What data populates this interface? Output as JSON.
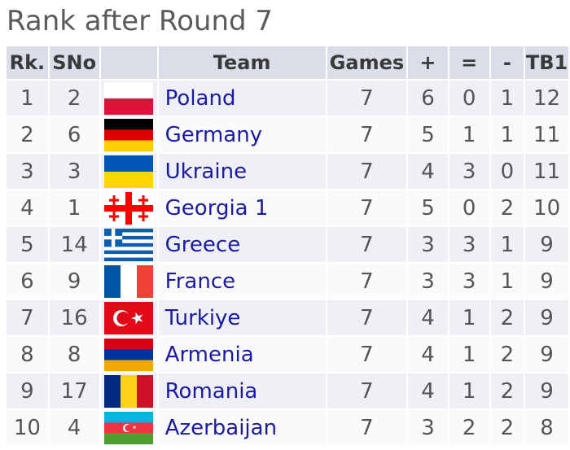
{
  "title": "Rank after Round 7",
  "columns": {
    "rk": "Rk.",
    "sno": "SNo",
    "team": "Team",
    "games": "Games",
    "plus": "+",
    "eq": "=",
    "minus": "-",
    "tb1": "TB1"
  },
  "rows": [
    {
      "rk": "1",
      "sno": "2",
      "flag": "poland-flag-icon",
      "team": "Poland",
      "games": "7",
      "plus": "6",
      "eq": "0",
      "minus": "1",
      "tb1": "12"
    },
    {
      "rk": "2",
      "sno": "6",
      "flag": "germany-flag-icon",
      "team": "Germany",
      "games": "7",
      "plus": "5",
      "eq": "1",
      "minus": "1",
      "tb1": "11"
    },
    {
      "rk": "3",
      "sno": "3",
      "flag": "ukraine-flag-icon",
      "team": "Ukraine",
      "games": "7",
      "plus": "4",
      "eq": "3",
      "minus": "0",
      "tb1": "11"
    },
    {
      "rk": "4",
      "sno": "1",
      "flag": "georgia-flag-icon",
      "team": "Georgia 1",
      "games": "7",
      "plus": "5",
      "eq": "0",
      "minus": "2",
      "tb1": "10"
    },
    {
      "rk": "5",
      "sno": "14",
      "flag": "greece-flag-icon",
      "team": "Greece",
      "games": "7",
      "plus": "3",
      "eq": "3",
      "minus": "1",
      "tb1": "9"
    },
    {
      "rk": "6",
      "sno": "9",
      "flag": "france-flag-icon",
      "team": "France",
      "games": "7",
      "plus": "3",
      "eq": "3",
      "minus": "1",
      "tb1": "9"
    },
    {
      "rk": "7",
      "sno": "16",
      "flag": "turkiye-flag-icon",
      "team": "Turkiye",
      "games": "7",
      "plus": "4",
      "eq": "1",
      "minus": "2",
      "tb1": "9"
    },
    {
      "rk": "8",
      "sno": "8",
      "flag": "armenia-flag-icon",
      "team": "Armenia",
      "games": "7",
      "plus": "4",
      "eq": "1",
      "minus": "2",
      "tb1": "9"
    },
    {
      "rk": "9",
      "sno": "17",
      "flag": "romania-flag-icon",
      "team": "Romania",
      "games": "7",
      "plus": "4",
      "eq": "1",
      "minus": "2",
      "tb1": "9"
    },
    {
      "rk": "10",
      "sno": "4",
      "flag": "azerbaijan-flag-icon",
      "team": "Azerbaijan",
      "games": "7",
      "plus": "3",
      "eq": "2",
      "minus": "2",
      "tb1": "8"
    }
  ],
  "colors": {
    "title": "#5a5a5a",
    "header_bg": "#d9dee8",
    "row_odd": "#eef0f5",
    "row_even": "#fafafa",
    "team_link": "#1a1aa6"
  }
}
